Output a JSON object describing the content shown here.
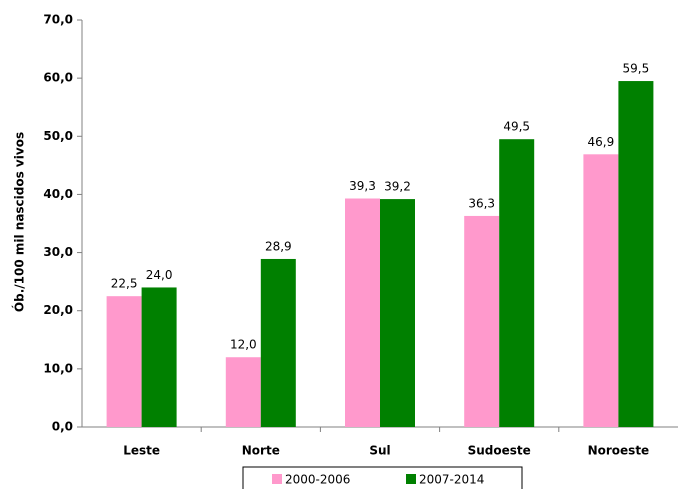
{
  "chart_data": {
    "type": "bar",
    "y_label": "Ób./100 mil nascidos vivos",
    "categories": [
      "Leste",
      "Norte",
      "Sul",
      "Sudoeste",
      "Noroeste"
    ],
    "series": [
      {
        "name": "2000-2006",
        "color": "#ff99cc",
        "values": [
          22.5,
          12.0,
          39.3,
          36.3,
          46.9
        ],
        "value_labels": [
          "22,5",
          "12,0",
          "39,3",
          "36,3",
          "46,9"
        ]
      },
      {
        "name": "2007-2014",
        "color": "#008000",
        "values": [
          24.0,
          28.9,
          39.2,
          49.5,
          59.5
        ],
        "value_labels": [
          "24,0",
          "28,9",
          "39,2",
          "49,5",
          "59,5"
        ]
      }
    ],
    "ylim": [
      0,
      70
    ],
    "yticks": [
      {
        "value": 0,
        "label": "0,0"
      },
      {
        "value": 10,
        "label": "10,0"
      },
      {
        "value": 20,
        "label": "20,0"
      },
      {
        "value": 30,
        "label": "30,0"
      },
      {
        "value": 40,
        "label": "40,0"
      },
      {
        "value": 50,
        "label": "50,0"
      },
      {
        "value": 60,
        "label": "60,0"
      },
      {
        "value": 70,
        "label": "70,0"
      }
    ],
    "legend": "bottom"
  }
}
